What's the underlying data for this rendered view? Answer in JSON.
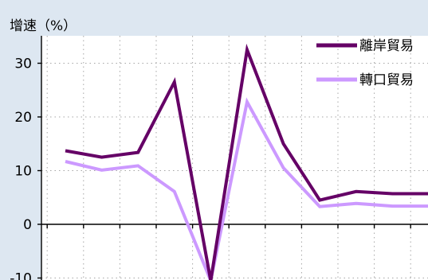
{
  "colors": {
    "background": "#dde7f1",
    "plot_background": "#ffffff",
    "offshore": "#650066",
    "reexport": "#cc99ff",
    "grid": "#a6a6a6",
    "axis": "#000000"
  },
  "chart_data": {
    "type": "line",
    "ylabel": "增速（%）",
    "ylim": [
      -10,
      33
    ],
    "y_ticks": [
      -10,
      0,
      10,
      20,
      30
    ],
    "y_tick_labels": [
      "-10",
      "0",
      "10",
      "20",
      "30"
    ],
    "grid": "dotted",
    "legend_position": "top-right",
    "x": [
      1,
      2,
      3,
      4,
      5,
      6,
      7,
      8,
      9,
      10,
      11
    ],
    "series": [
      {
        "name": "離岸貿易",
        "color": "#650066",
        "values": [
          13.7,
          12.5,
          13.4,
          26.5,
          -10.5,
          32.5,
          15.0,
          4.5,
          6.1,
          5.7,
          5.7
        ]
      },
      {
        "name": "轉口貿易",
        "color": "#cc99ff",
        "values": [
          11.7,
          10.1,
          10.9,
          6.1,
          -10.5,
          22.8,
          10.5,
          3.3,
          3.9,
          3.4,
          3.4
        ]
      }
    ]
  }
}
